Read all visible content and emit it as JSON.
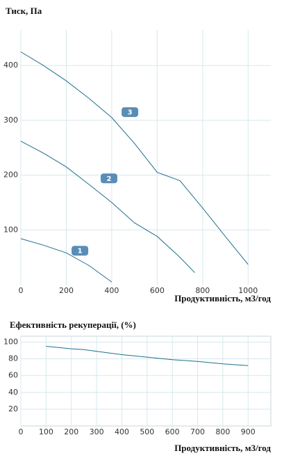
{
  "chart_data": [
    {
      "type": "line",
      "title": "Тиск, Па",
      "x_label": "Продуктивність, м3/год",
      "xlim": [
        0,
        1100
      ],
      "ylim": [
        0,
        465
      ],
      "xticks": [
        0,
        200,
        400,
        600,
        800,
        1000
      ],
      "yticks": [
        100,
        200,
        300,
        400
      ],
      "grid": true,
      "frame": false,
      "series": [
        {
          "name": "1",
          "color": "#1d6f8c",
          "x": [
            0,
            100,
            200,
            300,
            400
          ],
          "values": [
            84,
            72,
            58,
            35,
            5
          ]
        },
        {
          "name": "2",
          "color": "#1d6f8c",
          "x": [
            0,
            100,
            200,
            300,
            400,
            500,
            600,
            700,
            765
          ],
          "values": [
            262,
            240,
            215,
            183,
            150,
            113,
            88,
            50,
            22
          ]
        },
        {
          "name": "3",
          "color": "#1d6f8c",
          "x": [
            0,
            100,
            200,
            300,
            400,
            500,
            600,
            700,
            800,
            900,
            1000
          ],
          "values": [
            425,
            400,
            372,
            340,
            305,
            258,
            205,
            190,
            140,
            88,
            37
          ]
        }
      ]
    },
    {
      "type": "line",
      "title": "Ефективність рекуперації, (%)",
      "x_label": "Продуктивність, м3/год",
      "xlim": [
        0,
        990
      ],
      "ylim": [
        0,
        107
      ],
      "xticks": [
        0,
        100,
        200,
        300,
        400,
        500,
        600,
        700,
        800,
        900
      ],
      "yticks": [
        20,
        40,
        60,
        80,
        100
      ],
      "grid": true,
      "frame": true,
      "series": [
        {
          "color": "#1d6f8c",
          "x": [
            100,
            200,
            250,
            300,
            400,
            500,
            600,
            700,
            800,
            900
          ],
          "values": [
            95,
            92,
            91,
            89,
            85,
            82,
            79,
            77,
            74,
            72
          ]
        }
      ]
    }
  ]
}
